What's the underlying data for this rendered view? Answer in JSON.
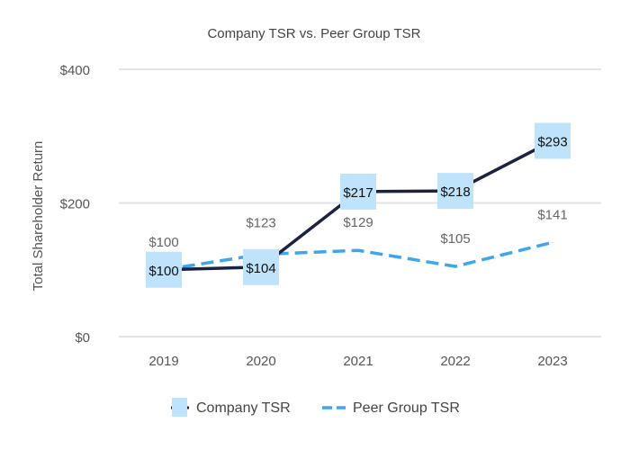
{
  "chart_data": {
    "type": "line",
    "title": "Company TSR vs. Peer Group TSR",
    "xlabel": "",
    "ylabel": "Total Shareholder Return",
    "categories": [
      "2019",
      "2020",
      "2021",
      "2022",
      "2023"
    ],
    "ylim": [
      0,
      400
    ],
    "yticks": [
      {
        "value": 0,
        "label": "$0"
      },
      {
        "value": 200,
        "label": "$200"
      },
      {
        "value": 400,
        "label": "$400"
      }
    ],
    "grid": true,
    "legend_position": "bottom",
    "series": [
      {
        "name": "Company TSR",
        "values": [
          100,
          104,
          217,
          218,
          293
        ],
        "labels": [
          "$100",
          "$104",
          "$217",
          "$218",
          "$293"
        ],
        "color": "#1b2340",
        "label_bg": "#bfe3fb",
        "style": "solid"
      },
      {
        "name": "Peer Group TSR",
        "values": [
          100,
          123,
          129,
          105,
          141
        ],
        "labels": [
          "$100",
          "$123",
          "$129",
          "$105",
          "$141"
        ],
        "color": "#3ea6ea",
        "style": "dashed"
      }
    ]
  }
}
